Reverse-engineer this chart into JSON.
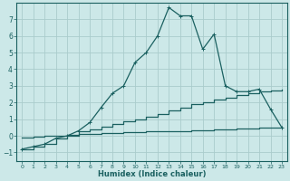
{
  "xlabel": "Humidex (Indice chaleur)",
  "bg_color": "#cce8e8",
  "grid_color": "#aacccc",
  "line_color": "#1a6060",
  "x_ticks": [
    0,
    1,
    2,
    3,
    4,
    5,
    6,
    7,
    8,
    9,
    10,
    11,
    12,
    13,
    14,
    15,
    16,
    17,
    18,
    19,
    20,
    21,
    22,
    23
  ],
  "y_ticks": [
    -1,
    0,
    1,
    2,
    3,
    4,
    5,
    6,
    7
  ],
  "ylim": [
    -1.5,
    8.0
  ],
  "xlim": [
    -0.5,
    23.5
  ],
  "curve1_x": [
    0,
    1,
    2,
    3,
    4,
    5,
    6,
    7,
    8,
    9,
    10,
    11,
    12,
    13,
    14,
    15,
    16,
    17,
    18,
    19,
    20,
    21,
    22,
    23
  ],
  "curve1_y": [
    -0.8,
    -0.65,
    -0.5,
    -0.15,
    0.0,
    0.3,
    0.8,
    1.7,
    2.55,
    3.0,
    4.4,
    5.0,
    6.0,
    7.7,
    7.2,
    7.2,
    5.2,
    6.1,
    3.0,
    2.65,
    2.65,
    2.8,
    1.6,
    0.5
  ],
  "curve2_x": [
    0,
    1,
    2,
    3,
    4,
    5,
    6,
    7,
    8,
    9,
    10,
    11,
    12,
    13,
    14,
    15,
    16,
    17,
    18,
    19,
    20,
    21,
    22,
    23
  ],
  "curve2_y": [
    -0.8,
    -0.65,
    -0.5,
    -0.15,
    0.0,
    0.3,
    0.4,
    0.55,
    0.7,
    0.85,
    1.0,
    1.15,
    1.3,
    1.55,
    1.7,
    1.9,
    2.0,
    2.15,
    2.3,
    2.45,
    2.55,
    2.65,
    2.7,
    2.75
  ],
  "curve3_x": [
    0,
    1,
    2,
    3,
    4,
    5,
    6,
    7,
    8,
    9,
    10,
    11,
    12,
    13,
    14,
    15,
    16,
    17,
    18,
    19,
    20,
    21,
    22,
    23
  ],
  "curve3_y": [
    -0.1,
    -0.05,
    0.0,
    0.0,
    0.05,
    0.1,
    0.1,
    0.15,
    0.15,
    0.2,
    0.2,
    0.25,
    0.25,
    0.3,
    0.3,
    0.35,
    0.35,
    0.4,
    0.4,
    0.45,
    0.45,
    0.5,
    0.5,
    0.55
  ]
}
